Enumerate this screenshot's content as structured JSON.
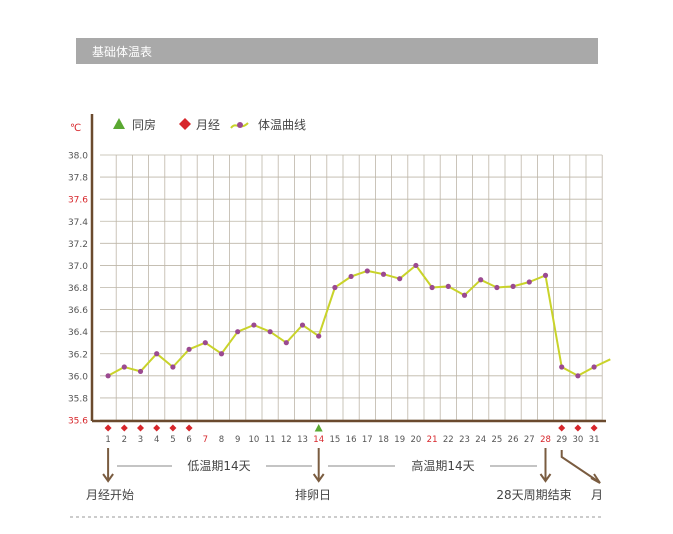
{
  "title": "基础体温表",
  "chart_data": {
    "type": "line",
    "unit_label": "℃",
    "legend": [
      {
        "name": "同房",
        "marker": "triangle",
        "color": "#5aa832"
      },
      {
        "name": "月经",
        "marker": "diamond",
        "color": "#d7262b"
      },
      {
        "name": "体温曲线",
        "marker": "line-dot",
        "color": "#c9d32a",
        "dot_color": "#9b4a90"
      }
    ],
    "ylim": [
      35.6,
      38.0
    ],
    "yticks": [
      "38.0",
      "37.8",
      "37.6",
      "37.4",
      "37.2",
      "37.0",
      "36.8",
      "36.6",
      "36.4",
      "36.2",
      "36.0",
      "35.8",
      "35.6"
    ],
    "red_yticks": [
      "37.6",
      "35.6"
    ],
    "days": [
      1,
      2,
      3,
      4,
      5,
      6,
      7,
      8,
      9,
      10,
      11,
      12,
      13,
      14,
      15,
      16,
      17,
      18,
      19,
      20,
      21,
      22,
      23,
      24,
      25,
      26,
      27,
      28,
      29,
      30,
      31
    ],
    "red_days": [
      7,
      14,
      21,
      28
    ],
    "series": [
      {
        "values": [
          36.0,
          36.08,
          36.04,
          36.2,
          36.08,
          36.24,
          36.3,
          36.2,
          36.4,
          36.46,
          36.4,
          36.3,
          36.46,
          36.36,
          36.8,
          36.9,
          36.95,
          36.92,
          36.88,
          37.0,
          36.8,
          36.81,
          36.73,
          36.87,
          36.8,
          36.81,
          36.85,
          36.91,
          36.08,
          36.0,
          36.08
        ]
      }
    ],
    "tail_to_day": 32,
    "tail_value": 36.15,
    "menstruation_days": [
      1,
      2,
      3,
      4,
      5,
      6,
      29,
      30,
      31
    ],
    "intercourse_days": [
      14
    ],
    "annotations": {
      "low_phase": "低温期14天",
      "high_phase": "高温期14天",
      "start": "月经开始",
      "ovulation": "排卵日",
      "cycle": "28天周期结束",
      "next": "月"
    }
  },
  "colors": {
    "axis": "#6b4a2e",
    "grid": "#bdb6a8",
    "curve": "#c9d32a",
    "dot": "#9b4a90",
    "red": "#d7262b",
    "green": "#5aa832",
    "arrow": "#7a5c40",
    "title_bar": "#a9a9a9"
  }
}
